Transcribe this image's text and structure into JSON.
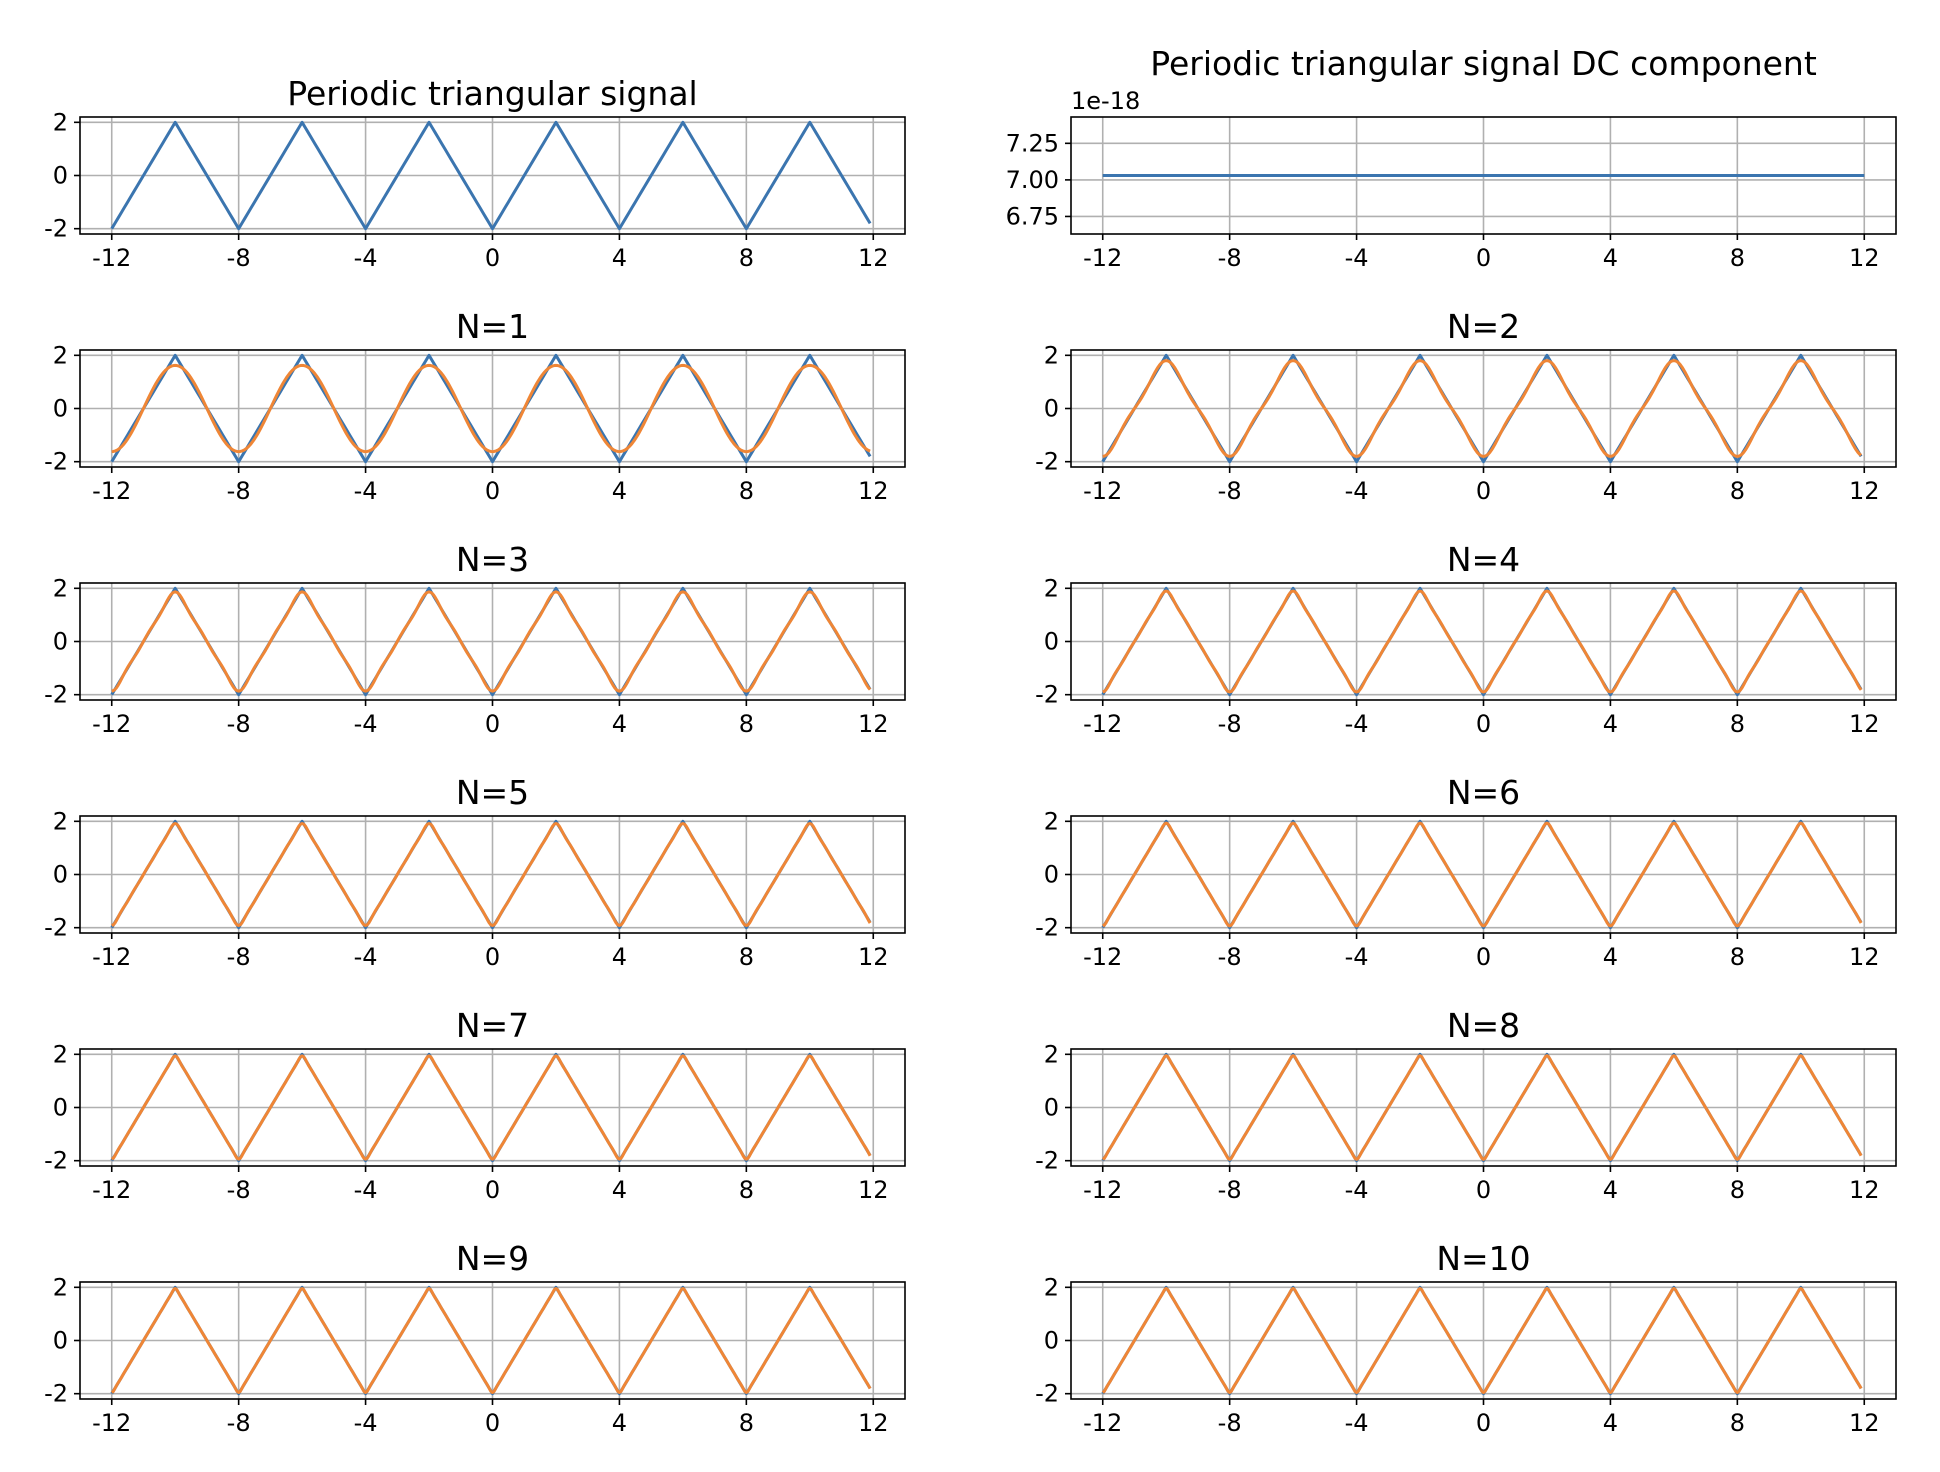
{
  "chart_data": [
    {
      "type": "line",
      "title": "Periodic triangular signal",
      "xticks": [
        "-12",
        "-8",
        "-4",
        "0",
        "4",
        "8",
        "12"
      ],
      "xlim": [
        -13,
        13
      ],
      "yticks": [
        "2",
        "0",
        "-2"
      ],
      "ylim": [
        -2.2,
        2.2
      ],
      "grid": true,
      "series": [
        {
          "color": "#3b75af",
          "signal": "triangle",
          "period": 4,
          "amplitude": 2,
          "x_range": [
            -12,
            12
          ]
        }
      ]
    },
    {
      "type": "line",
      "title": "Periodic triangular signal DC component",
      "offset_label": "1e-18",
      "xticks": [
        "-12",
        "-8",
        "-4",
        "0",
        "4",
        "8",
        "12"
      ],
      "xlim": [
        -13,
        13
      ],
      "yticks": [
        "7.25",
        "7.00",
        "6.75"
      ],
      "ylim": [
        6.63,
        7.43
      ],
      "grid": true,
      "series": [
        {
          "color": "#3b75af",
          "x": [
            -12,
            12
          ],
          "y": [
            7.03,
            7.03
          ]
        }
      ]
    },
    {
      "type": "line",
      "title": "N=1",
      "harmonics": 1,
      "xticks": [
        "-12",
        "-8",
        "-4",
        "0",
        "4",
        "8",
        "12"
      ],
      "xlim": [
        -13,
        13
      ],
      "yticks": [
        "2",
        "0",
        "-2"
      ],
      "ylim": [
        -2.2,
        2.2
      ],
      "grid": true,
      "series": [
        {
          "color": "#3b75af",
          "signal": "triangle"
        },
        {
          "color": "#ef8636",
          "signal": "fourier_approximation"
        }
      ]
    },
    {
      "type": "line",
      "title": "N=2",
      "harmonics": 2,
      "xticks": [
        "-12",
        "-8",
        "-4",
        "0",
        "4",
        "8",
        "12"
      ],
      "xlim": [
        -13,
        13
      ],
      "yticks": [
        "2",
        "0",
        "-2"
      ],
      "ylim": [
        -2.2,
        2.2
      ],
      "grid": true,
      "series": [
        {
          "color": "#3b75af",
          "signal": "triangle"
        },
        {
          "color": "#ef8636",
          "signal": "fourier_approximation"
        }
      ]
    },
    {
      "type": "line",
      "title": "N=3",
      "harmonics": 3,
      "xticks": [
        "-12",
        "-8",
        "-4",
        "0",
        "4",
        "8",
        "12"
      ],
      "xlim": [
        -13,
        13
      ],
      "yticks": [
        "2",
        "0",
        "-2"
      ],
      "ylim": [
        -2.2,
        2.2
      ],
      "grid": true,
      "series": [
        {
          "color": "#3b75af",
          "signal": "triangle"
        },
        {
          "color": "#ef8636",
          "signal": "fourier_approximation"
        }
      ]
    },
    {
      "type": "line",
      "title": "N=4",
      "harmonics": 4,
      "xticks": [
        "-12",
        "-8",
        "-4",
        "0",
        "4",
        "8",
        "12"
      ],
      "xlim": [
        -13,
        13
      ],
      "yticks": [
        "2",
        "0",
        "-2"
      ],
      "ylim": [
        -2.2,
        2.2
      ],
      "grid": true,
      "series": [
        {
          "color": "#3b75af",
          "signal": "triangle"
        },
        {
          "color": "#ef8636",
          "signal": "fourier_approximation"
        }
      ]
    },
    {
      "type": "line",
      "title": "N=5",
      "harmonics": 5,
      "xticks": [
        "-12",
        "-8",
        "-4",
        "0",
        "4",
        "8",
        "12"
      ],
      "xlim": [
        -13,
        13
      ],
      "yticks": [
        "2",
        "0",
        "-2"
      ],
      "ylim": [
        -2.2,
        2.2
      ],
      "grid": true,
      "series": [
        {
          "color": "#3b75af",
          "signal": "triangle"
        },
        {
          "color": "#ef8636",
          "signal": "fourier_approximation"
        }
      ]
    },
    {
      "type": "line",
      "title": "N=6",
      "harmonics": 6,
      "xticks": [
        "-12",
        "-8",
        "-4",
        "0",
        "4",
        "8",
        "12"
      ],
      "xlim": [
        -13,
        13
      ],
      "yticks": [
        "2",
        "0",
        "-2"
      ],
      "ylim": [
        -2.2,
        2.2
      ],
      "grid": true,
      "series": [
        {
          "color": "#3b75af",
          "signal": "triangle"
        },
        {
          "color": "#ef8636",
          "signal": "fourier_approximation"
        }
      ]
    },
    {
      "type": "line",
      "title": "N=7",
      "harmonics": 7,
      "xticks": [
        "-12",
        "-8",
        "-4",
        "0",
        "4",
        "8",
        "12"
      ],
      "xlim": [
        -13,
        13
      ],
      "yticks": [
        "2",
        "0",
        "-2"
      ],
      "ylim": [
        -2.2,
        2.2
      ],
      "grid": true,
      "series": [
        {
          "color": "#3b75af",
          "signal": "triangle"
        },
        {
          "color": "#ef8636",
          "signal": "fourier_approximation"
        }
      ]
    },
    {
      "type": "line",
      "title": "N=8",
      "harmonics": 8,
      "xticks": [
        "-12",
        "-8",
        "-4",
        "0",
        "4",
        "8",
        "12"
      ],
      "xlim": [
        -13,
        13
      ],
      "yticks": [
        "2",
        "0",
        "-2"
      ],
      "ylim": [
        -2.2,
        2.2
      ],
      "grid": true,
      "series": [
        {
          "color": "#3b75af",
          "signal": "triangle"
        },
        {
          "color": "#ef8636",
          "signal": "fourier_approximation"
        }
      ]
    },
    {
      "type": "line",
      "title": "N=9",
      "harmonics": 9,
      "xticks": [
        "-12",
        "-8",
        "-4",
        "0",
        "4",
        "8",
        "12"
      ],
      "xlim": [
        -13,
        13
      ],
      "yticks": [
        "2",
        "0",
        "-2"
      ],
      "ylim": [
        -2.2,
        2.2
      ],
      "grid": true,
      "series": [
        {
          "color": "#3b75af",
          "signal": "triangle"
        },
        {
          "color": "#ef8636",
          "signal": "fourier_approximation"
        }
      ]
    },
    {
      "type": "line",
      "title": "N=10",
      "harmonics": 10,
      "xticks": [
        "-12",
        "-8",
        "-4",
        "0",
        "4",
        "8",
        "12"
      ],
      "xlim": [
        -13,
        13
      ],
      "yticks": [
        "2",
        "0",
        "-2"
      ],
      "ylim": [
        -2.2,
        2.2
      ],
      "grid": true,
      "series": [
        {
          "color": "#3b75af",
          "signal": "triangle"
        },
        {
          "color": "#ef8636",
          "signal": "fourier_approximation"
        }
      ]
    }
  ]
}
